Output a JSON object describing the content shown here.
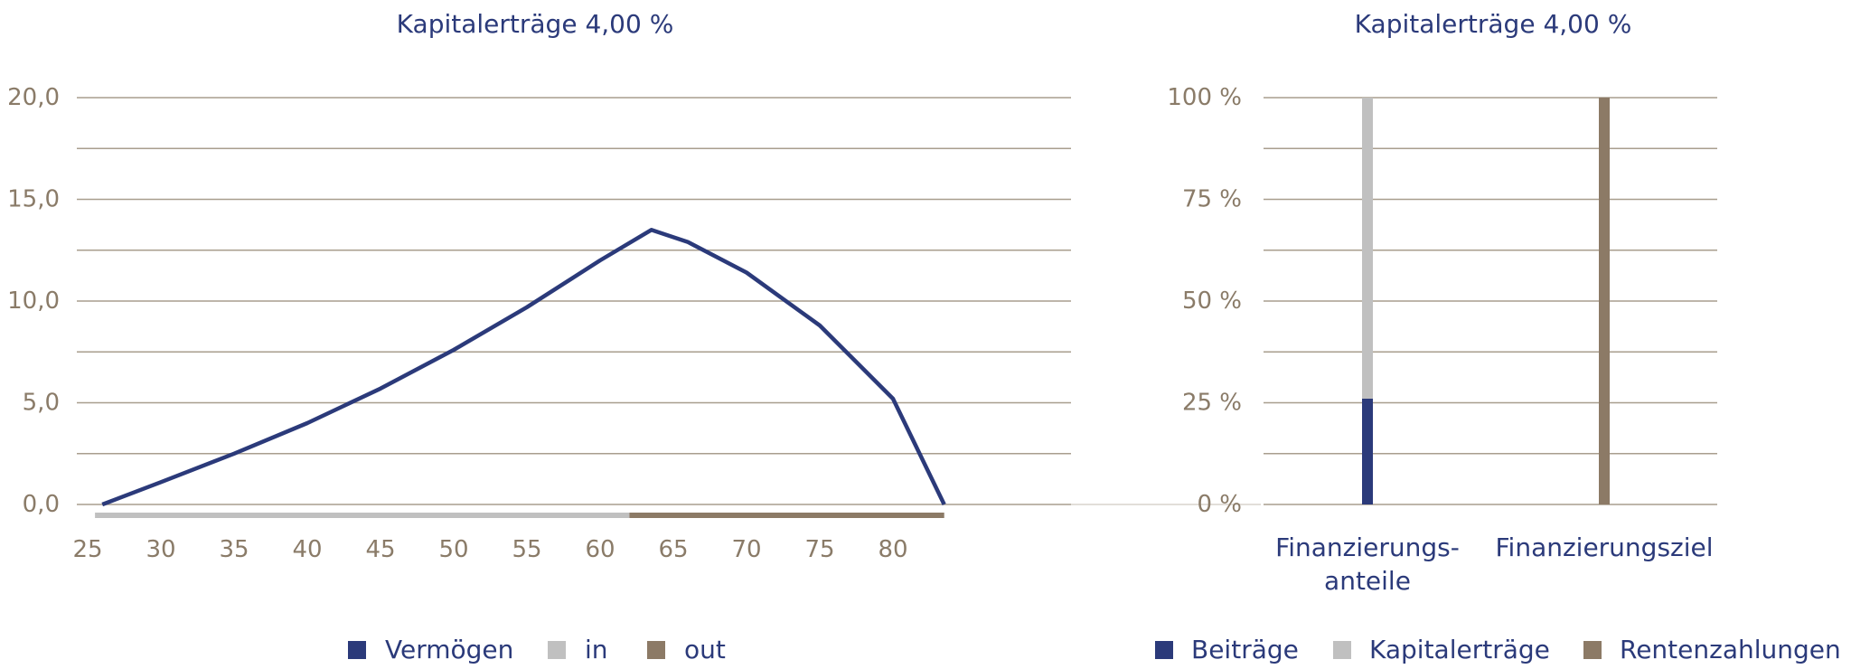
{
  "chart_data": [
    {
      "type": "line",
      "title": "Kapitalerträge 4,00 %",
      "xlabel": "",
      "ylabel": "",
      "xlim": [
        25,
        85
      ],
      "ylim": [
        0,
        20
      ],
      "x_ticks": [
        "25",
        "30",
        "35",
        "40",
        "45",
        "50",
        "55",
        "60",
        "65",
        "70",
        "75",
        "80"
      ],
      "y_ticks": [
        "0,0",
        "5,0",
        "10,0",
        "15,0",
        "20,0"
      ],
      "grid": true,
      "series": [
        {
          "name": "Vermögen",
          "color": "#2b3a7a",
          "points": [
            [
              26,
              0.0
            ],
            [
              30,
              1.1
            ],
            [
              35,
              2.5
            ],
            [
              40,
              4.0
            ],
            [
              45,
              5.7
            ],
            [
              50,
              7.6
            ],
            [
              55,
              9.7
            ],
            [
              60,
              12.0
            ],
            [
              63.5,
              13.5
            ],
            [
              66,
              12.9
            ],
            [
              70,
              11.4
            ],
            [
              75,
              8.8
            ],
            [
              80,
              5.2
            ],
            [
              83.5,
              0.0
            ]
          ]
        }
      ],
      "bands": [
        {
          "name": "in",
          "color": "#c0c0c0",
          "from": 25.5,
          "to": 62
        },
        {
          "name": "out",
          "color": "#8c7a66",
          "from": 62,
          "to": 83.5
        }
      ],
      "legend": [
        {
          "label": "Vermögen",
          "color": "#2b3a7a"
        },
        {
          "label": "in",
          "color": "#c0c0c0"
        },
        {
          "label": "out",
          "color": "#8c7a66"
        }
      ]
    },
    {
      "type": "bar",
      "stacked": true,
      "title": "Kapitalerträge 4,00 %",
      "categories": [
        "Finanzierungs-",
        "Finanzierungsziel"
      ],
      "category_label_lines": [
        [
          "Finanzierungs-",
          "anteile"
        ],
        [
          "Finanzierungsziel"
        ]
      ],
      "ylim": [
        0,
        100
      ],
      "y_ticks": [
        "0 %",
        "25 %",
        "50 %",
        "75 %",
        "100 %"
      ],
      "grid": true,
      "series": [
        {
          "name": "Beiträge",
          "color": "#2b3a7a",
          "values": [
            26,
            0
          ]
        },
        {
          "name": "Kapitalerträge",
          "color": "#c0c0c0",
          "values": [
            74,
            0
          ]
        },
        {
          "name": "Rentenzahlungen",
          "color": "#8c7a66",
          "values": [
            0,
            100
          ]
        }
      ],
      "legend": [
        {
          "label": "Beiträge",
          "color": "#2b3a7a"
        },
        {
          "label": "Kapitalerträge",
          "color": "#c0c0c0"
        },
        {
          "label": "Rentenzahlungen",
          "color": "#8c7a66"
        }
      ]
    }
  ]
}
